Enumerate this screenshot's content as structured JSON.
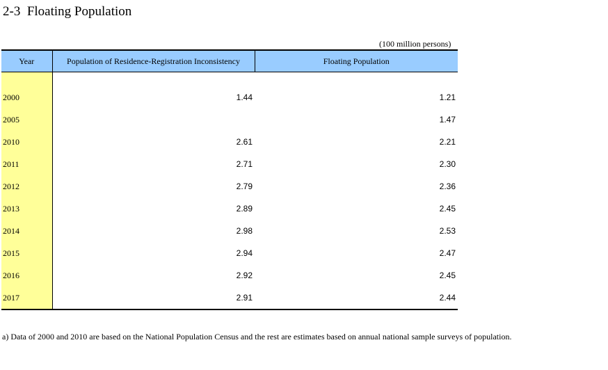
{
  "title": "2-3  Floating Population",
  "unit_note": "(100 million persons)",
  "table": {
    "headers": [
      "Year",
      "Population of Residence-Registration Inconsistency",
      "Floating Population"
    ],
    "rows": [
      {
        "year": "2000",
        "inconsistency": "1.44",
        "floating": "1.21"
      },
      {
        "year": "2005",
        "inconsistency": "",
        "floating": "1.47"
      },
      {
        "year": "2010",
        "inconsistency": "2.61",
        "floating": "2.21"
      },
      {
        "year": "2011",
        "inconsistency": "2.71",
        "floating": "2.30"
      },
      {
        "year": "2012",
        "inconsistency": "2.79",
        "floating": "2.36"
      },
      {
        "year": "2013",
        "inconsistency": "2.89",
        "floating": "2.45"
      },
      {
        "year": "2014",
        "inconsistency": "2.98",
        "floating": "2.53"
      },
      {
        "year": "2015",
        "inconsistency": "2.94",
        "floating": "2.47"
      },
      {
        "year": "2016",
        "inconsistency": "2.92",
        "floating": "2.45"
      },
      {
        "year": "2017",
        "inconsistency": "2.91",
        "floating": "2.44"
      }
    ]
  },
  "footnote": "a) Data of 2000 and 2010 are based on the National Population Census and the rest are estimates based on annual national sample surveys of population.",
  "colors": {
    "header_bg": "#99ccff",
    "year_column_bg": "#ffff99"
  }
}
